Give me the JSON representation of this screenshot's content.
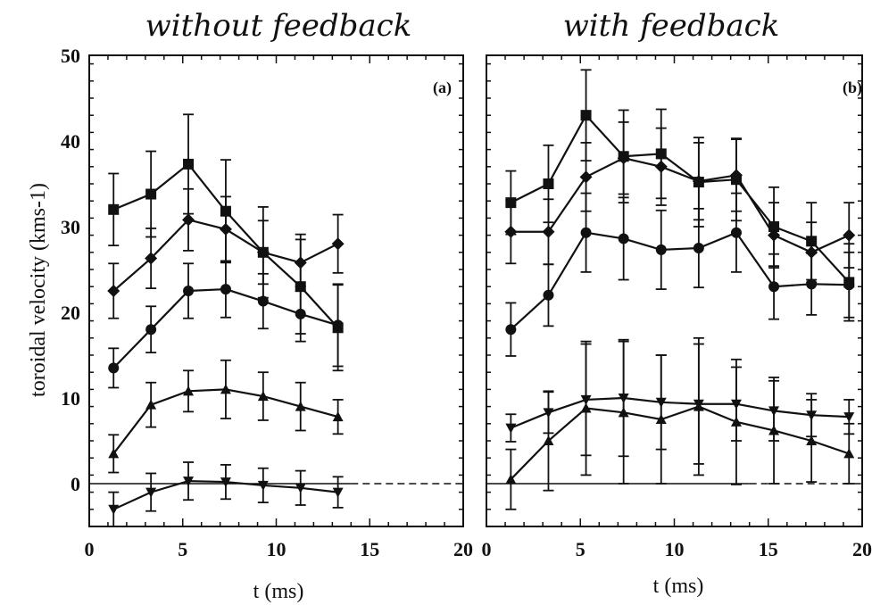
{
  "chart_data": [
    {
      "type": "line",
      "panel": "(a)",
      "title": "without feedback",
      "xlabel": "t (ms)",
      "ylabel": "toroidal velocity (kms-1)",
      "xlim": [
        0,
        20
      ],
      "ylim": [
        -5,
        50
      ],
      "xticks": [
        0,
        5,
        10,
        15,
        20
      ],
      "yticks": [
        0,
        10,
        20,
        30,
        40,
        50
      ],
      "zero_line": "solid then dashed",
      "series": [
        {
          "marker": "square",
          "x": [
            1.3,
            3.3,
            5.3,
            7.3,
            9.3,
            11.3,
            13.3
          ],
          "y": [
            32,
            33.8,
            37.3,
            31.8,
            27,
            23,
            18.2
          ],
          "err": [
            4.2,
            5,
            5.8,
            6,
            5.3,
            5.5,
            5
          ]
        },
        {
          "marker": "diamond",
          "x": [
            1.3,
            3.3,
            5.3,
            7.3,
            9.3,
            11.3,
            13.3
          ],
          "y": [
            22.5,
            26.3,
            30.8,
            29.7,
            27,
            25.8,
            28
          ],
          "err": [
            3.2,
            3.5,
            3.6,
            3.8,
            3.7,
            3.3,
            3.4
          ]
        },
        {
          "marker": "circle",
          "x": [
            1.3,
            3.3,
            5.3,
            7.3,
            9.3,
            11.3,
            13.3
          ],
          "y": [
            13.5,
            18,
            22.5,
            22.7,
            21.3,
            19.8,
            18.5
          ],
          "err": [
            2.3,
            2.7,
            3.2,
            3.3,
            3.2,
            3.2,
            4.8
          ]
        },
        {
          "marker": "triangle-up",
          "x": [
            1.3,
            3.3,
            5.3,
            7.3,
            9.3,
            11.3,
            13.3
          ],
          "y": [
            3.5,
            9.2,
            10.8,
            11,
            10.2,
            9,
            7.8
          ],
          "err": [
            2.2,
            2.6,
            2.4,
            3.4,
            2.8,
            2.8,
            2
          ]
        },
        {
          "marker": "triangle-down",
          "x": [
            1.3,
            3.3,
            5.3,
            7.3,
            9.3,
            11.3,
            13.3
          ],
          "y": [
            -3,
            -1,
            0.3,
            0.2,
            -0.2,
            -0.5,
            -1
          ],
          "err": [
            2,
            2.2,
            2.2,
            2,
            2,
            2,
            1.8
          ]
        }
      ]
    },
    {
      "type": "line",
      "panel": "(b)",
      "title": "with feedback",
      "xlabel": "t (ms)",
      "xlim": [
        0,
        20
      ],
      "ylim": [
        -5,
        50
      ],
      "xticks": [
        0,
        5,
        10,
        15,
        20
      ],
      "zero_line": "solid then dashed",
      "series": [
        {
          "marker": "square",
          "x": [
            1.3,
            3.3,
            5.3,
            7.3,
            9.3,
            11.3,
            13.3,
            15.3,
            17.3,
            19.3
          ],
          "y": [
            32.8,
            35,
            43,
            38.2,
            38.5,
            35.2,
            35.5,
            30,
            28.3,
            23.5
          ],
          "err": [
            3.7,
            4.5,
            5.3,
            5.4,
            5.2,
            5.2,
            4.8,
            4.6,
            4.5,
            4.5
          ]
        },
        {
          "marker": "diamond",
          "x": [
            1.3,
            3.3,
            5.3,
            7.3,
            9.3,
            11.3,
            13.3,
            15.3,
            17.3,
            19.3
          ],
          "y": [
            29.4,
            29.4,
            35.8,
            38,
            37,
            35.3,
            36,
            29,
            27,
            29
          ],
          "err": [
            3.7,
            3.8,
            4,
            4.2,
            4.5,
            4.5,
            4.2,
            3.8,
            3.5,
            3.8
          ]
        },
        {
          "marker": "circle",
          "x": [
            1.3,
            3.3,
            5.3,
            7.3,
            9.3,
            11.3,
            13.3,
            15.3,
            17.3,
            19.3
          ],
          "y": [
            18,
            22,
            29.3,
            28.6,
            27.3,
            27.5,
            29.3,
            23,
            23.3,
            23.2
          ],
          "err": [
            3.1,
            3.6,
            4.6,
            4.8,
            4.6,
            4.6,
            4.6,
            3.8,
            3.6,
            3.8
          ]
        },
        {
          "marker": "triangle-down",
          "x": [
            1.3,
            3.3,
            5.3,
            7.3,
            9.3,
            11.3,
            13.3,
            15.3,
            17.3,
            19.3
          ],
          "y": [
            6.5,
            8.3,
            9.8,
            10,
            9.5,
            9.3,
            9.3,
            8.5,
            8,
            7.8
          ],
          "err": [
            1.6,
            2.4,
            6.5,
            6.8,
            5.5,
            7,
            4.3,
            3.5,
            2.5,
            2
          ]
        },
        {
          "marker": "triangle-up",
          "x": [
            1.3,
            3.3,
            5.3,
            7.3,
            9.3,
            11.3,
            13.3,
            15.3,
            17.3,
            19.3
          ],
          "y": [
            0.5,
            5,
            8.8,
            8.3,
            7.5,
            9,
            7.2,
            6.2,
            5,
            3.5
          ],
          "err": [
            3.5,
            5.8,
            7.8,
            8.3,
            7.5,
            8,
            7.3,
            6.2,
            4.8,
            3.5
          ]
        }
      ]
    }
  ]
}
